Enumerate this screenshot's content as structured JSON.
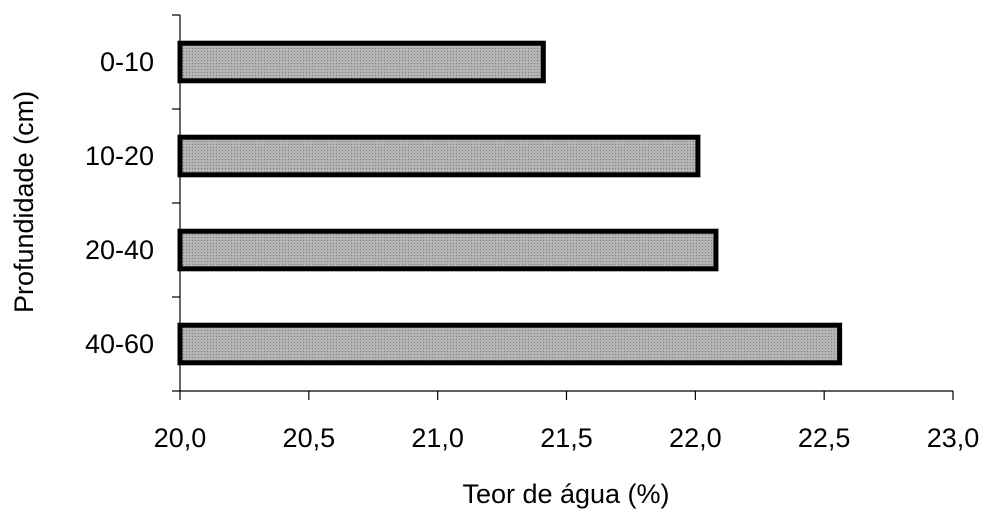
{
  "chart_data": {
    "type": "bar",
    "orientation": "horizontal",
    "title": "",
    "xlabel": "Teor de água (%)",
    "ylabel": "Profundidade (cm)",
    "categories": [
      "0-10",
      "10-20",
      "20-40",
      "40-60"
    ],
    "values": [
      21.41,
      22.01,
      22.08,
      22.56
    ],
    "xlim": [
      20.0,
      23.0
    ],
    "xticks": [
      "20,0",
      "20,5",
      "21,0",
      "21,5",
      "22,0",
      "22,5",
      "23,0"
    ],
    "xtick_values": [
      20.0,
      20.5,
      21.0,
      21.5,
      22.0,
      22.5,
      23.0
    ],
    "grid": false,
    "legend": "none",
    "bar_fill": "#b4b4b4",
    "bar_pattern_dot": "#7a7a7a",
    "bar_edge": "#000000",
    "axis_color": "#000000"
  }
}
